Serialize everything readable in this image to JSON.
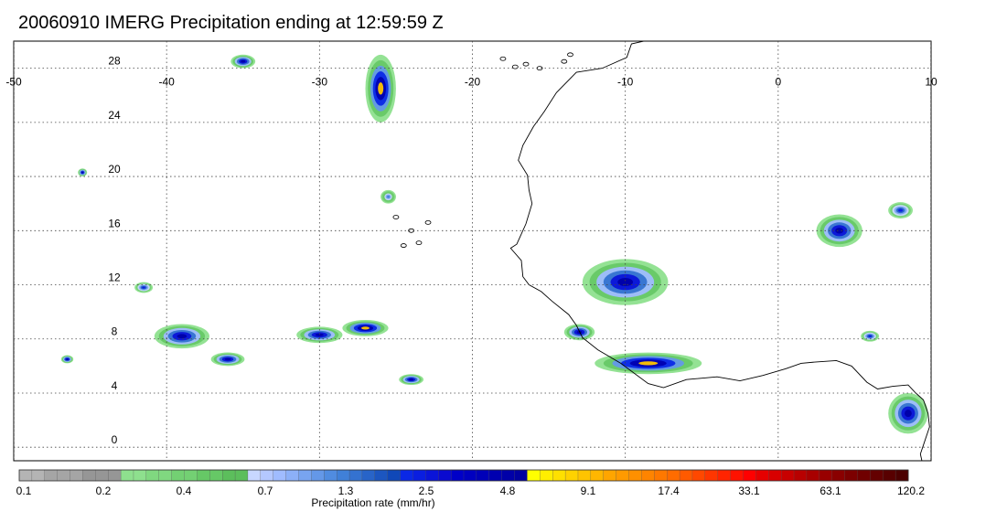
{
  "title": "20060910 IMERG Precipitation ending at 12:59:59 Z",
  "map": {
    "lon_range": [
      -50,
      10
    ],
    "lat_range": [
      -1,
      30
    ],
    "lon_ticks": [
      "-50",
      "-40",
      "-30",
      "-20",
      "-10",
      "0",
      "10"
    ],
    "lat_ticks": [
      "28",
      "24",
      "20",
      "16",
      "12",
      "8",
      "4",
      "0"
    ],
    "gridlines": "dotted",
    "coastline_color": "#000000"
  },
  "colorbar": {
    "label": "Precipitation rate (mm/hr)",
    "tick_labels": [
      "0.1",
      "0.2",
      "0.4",
      "0.7",
      "1.3",
      "2.5",
      "4.8",
      "9.1",
      "17.4",
      "33.1",
      "63.1",
      "120.2"
    ],
    "colors": [
      "#b4b4b4",
      "#b4b4b4",
      "#a5a5a5",
      "#a5a5a5",
      "#a5a5a5",
      "#969696",
      "#969696",
      "#969696",
      "#8ee08e",
      "#8ee08e",
      "#80d880",
      "#80d880",
      "#73d073",
      "#73d073",
      "#66c866",
      "#66c866",
      "#5cbe5c",
      "#5cbe5c",
      "#c8d7ff",
      "#b4c8ff",
      "#a0bcff",
      "#8cb0f8",
      "#78a4f0",
      "#6498e8",
      "#508ce0",
      "#4080d8",
      "#3472d0",
      "#2864c8",
      "#1c56c0",
      "#1048b8",
      "#0a28e6",
      "#0a1ee0",
      "#0a14d8",
      "#0a0ad0",
      "#0000c8",
      "#0000c0",
      "#0000b8",
      "#0000b0",
      "#0000a8",
      "#0000a0",
      "#ffff00",
      "#ffee00",
      "#ffe000",
      "#ffd200",
      "#ffc400",
      "#ffb600",
      "#ffa500",
      "#ff9a00",
      "#ff9000",
      "#ff8400",
      "#ff7800",
      "#ff6c00",
      "#ff5a00",
      "#ff4800",
      "#ff3600",
      "#ff2400",
      "#ff1200",
      "#ff0000",
      "#e60000",
      "#d80000",
      "#c80000",
      "#b80000",
      "#a80000",
      "#980000",
      "#8a0000",
      "#7c0000",
      "#700000",
      "#640000",
      "#580000",
      "#4c0000"
    ]
  },
  "precip_cells": [
    {
      "lon": -10.0,
      "lat": 12.2,
      "rx": 2.8,
      "ry": 1.7,
      "max": "4.8"
    },
    {
      "lon": -8.5,
      "lat": 6.2,
      "rx": 3.5,
      "ry": 0.8,
      "max": "9.1"
    },
    {
      "lon": -13.0,
      "lat": 8.5,
      "rx": 1.0,
      "ry": 0.6,
      "max": "4.8"
    },
    {
      "lon": -39.0,
      "lat": 8.2,
      "rx": 1.8,
      "ry": 0.9,
      "max": "4.8"
    },
    {
      "lon": -36.0,
      "lat": 6.5,
      "rx": 1.1,
      "ry": 0.5,
      "max": "4.8"
    },
    {
      "lon": -30.0,
      "lat": 8.3,
      "rx": 1.5,
      "ry": 0.6,
      "max": "4.8"
    },
    {
      "lon": -27.0,
      "lat": 8.8,
      "rx": 1.5,
      "ry": 0.6,
      "max": "9.1"
    },
    {
      "lon": -24.0,
      "lat": 5.0,
      "rx": 0.8,
      "ry": 0.4,
      "max": "4.8"
    },
    {
      "lon": -26.0,
      "lat": 26.5,
      "rx": 1.0,
      "ry": 2.5,
      "max": "9.1"
    },
    {
      "lon": -35.0,
      "lat": 28.5,
      "rx": 0.8,
      "ry": 0.5,
      "max": "4.8"
    },
    {
      "lon": -41.5,
      "lat": 11.8,
      "rx": 0.6,
      "ry": 0.4,
      "max": "2.5"
    },
    {
      "lon": 4.0,
      "lat": 16.0,
      "rx": 1.5,
      "ry": 1.2,
      "max": "4.8"
    },
    {
      "lon": 8.5,
      "lat": 2.5,
      "rx": 1.3,
      "ry": 1.5,
      "max": "4.8"
    },
    {
      "lon": 6.0,
      "lat": 8.2,
      "rx": 0.6,
      "ry": 0.4,
      "max": "2.5"
    },
    {
      "lon": 8.0,
      "lat": 17.5,
      "rx": 0.8,
      "ry": 0.6,
      "max": "2.5"
    },
    {
      "lon": -25.5,
      "lat": 18.5,
      "rx": 0.5,
      "ry": 0.5,
      "max": "1.3"
    },
    {
      "lon": -45.5,
      "lat": 20.3,
      "rx": 0.3,
      "ry": 0.3,
      "max": "4.8"
    },
    {
      "lon": -46.5,
      "lat": 6.5,
      "rx": 0.4,
      "ry": 0.3,
      "max": "4.8"
    }
  ]
}
